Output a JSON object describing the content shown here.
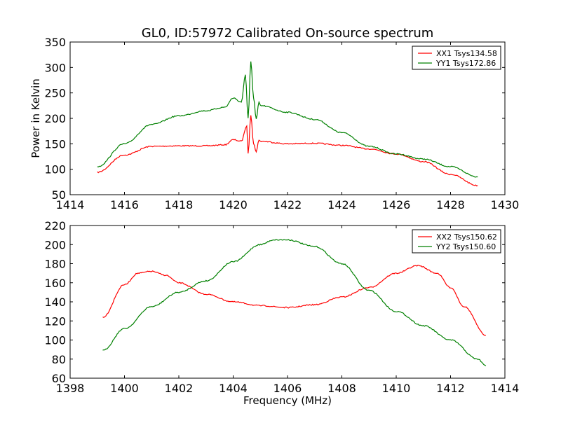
{
  "chart_data": [
    {
      "type": "line",
      "title": "GL0, ID:57972 Calibrated On-source spectrum",
      "xlabel": "",
      "ylabel": "Power in Kelvin",
      "xlim": [
        1414,
        1430
      ],
      "ylim": [
        50,
        350
      ],
      "xticks": [
        1414,
        1416,
        1418,
        1420,
        1422,
        1424,
        1426,
        1428,
        1430
      ],
      "yticks": [
        50,
        100,
        150,
        200,
        250,
        300,
        350
      ],
      "legend_position": "top-right",
      "series": [
        {
          "name": "XX1 Tsys134.58",
          "color": "#ff0000",
          "x": [
            1415,
            1416,
            1417,
            1418,
            1419,
            1419.7,
            1420,
            1420.3,
            1420.5,
            1420.55,
            1420.65,
            1420.75,
            1420.85,
            1420.95,
            1421,
            1422,
            1423,
            1424,
            1425,
            1426,
            1427,
            1428,
            1429
          ],
          "y": [
            94,
            128,
            145,
            146,
            146,
            148,
            158,
            155,
            185,
            130,
            207,
            150,
            135,
            157,
            155,
            150,
            151,
            147,
            140,
            130,
            115,
            90,
            68
          ]
        },
        {
          "name": "YY1 Tsys172.86",
          "color": "#008000",
          "x": [
            1415,
            1416,
            1417,
            1418,
            1419,
            1419.7,
            1420,
            1420.3,
            1420.45,
            1420.55,
            1420.65,
            1420.75,
            1420.85,
            1420.95,
            1421,
            1422,
            1423,
            1424,
            1425,
            1426,
            1427,
            1428,
            1429
          ],
          "y": [
            105,
            150,
            188,
            205,
            215,
            222,
            240,
            232,
            285,
            200,
            312,
            240,
            198,
            232,
            225,
            212,
            198,
            172,
            145,
            130,
            120,
            105,
            85
          ]
        }
      ]
    },
    {
      "type": "line",
      "title": "",
      "xlabel": "Frequency (MHz)",
      "ylabel": "",
      "xlim": [
        1398,
        1414
      ],
      "ylim": [
        60,
        220
      ],
      "xticks": [
        1398,
        1400,
        1402,
        1404,
        1406,
        1408,
        1410,
        1412,
        1414
      ],
      "yticks": [
        60,
        80,
        100,
        120,
        140,
        160,
        180,
        200,
        220
      ],
      "legend_position": "top-right",
      "series": [
        {
          "name": "XX2 Tsys150.62",
          "color": "#ff0000",
          "x": [
            1399.2,
            1400,
            1400.5,
            1401,
            1401.5,
            1402,
            1403,
            1404,
            1405,
            1406,
            1407,
            1408,
            1409,
            1410,
            1410.8,
            1411.5,
            1412,
            1412.5,
            1413.3
          ],
          "y": [
            124,
            158,
            170,
            172,
            168,
            160,
            148,
            140,
            136,
            134,
            137,
            145,
            155,
            170,
            178,
            170,
            155,
            135,
            105
          ]
        },
        {
          "name": "YY2 Tsys150.60",
          "color": "#008000",
          "x": [
            1399.2,
            1400,
            1401,
            1402,
            1403,
            1404,
            1405,
            1405.5,
            1406,
            1407,
            1408,
            1409,
            1410,
            1411,
            1412,
            1413,
            1413.3
          ],
          "y": [
            89,
            112,
            135,
            150,
            162,
            182,
            200,
            205,
            205,
            198,
            180,
            152,
            130,
            115,
            100,
            80,
            73
          ]
        }
      ]
    }
  ]
}
